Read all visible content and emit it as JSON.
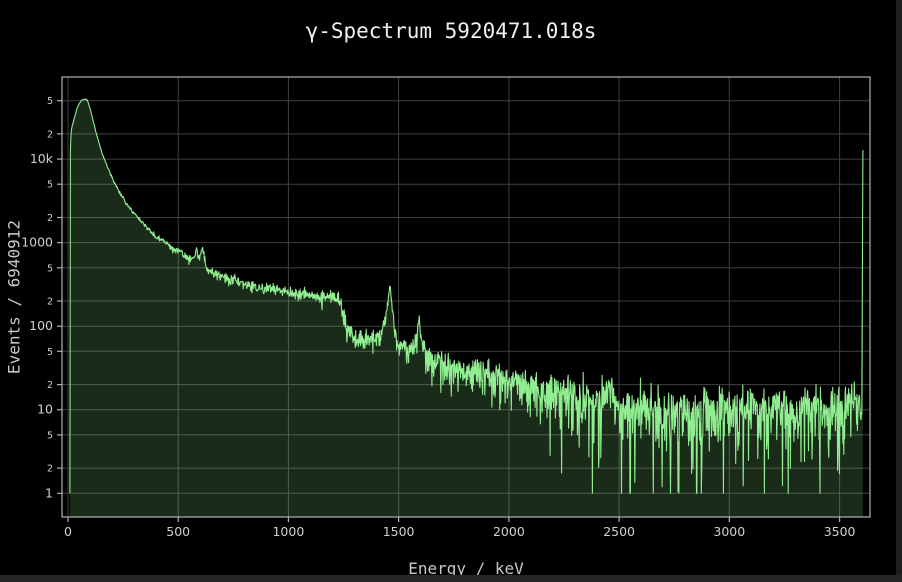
{
  "window": {
    "background": "#000000",
    "right_edge_color": "#1f1f1f",
    "bottom_edge_color": "#262626"
  },
  "chart_data": {
    "type": "area",
    "title": "γ-Spectrum 5920471.018s",
    "xlabel": "Energy / keV",
    "ylabel": "Events / 6940912",
    "legend": "none",
    "grid": "on",
    "x_axis": {
      "min": -27,
      "max": 3638,
      "ticks": [
        {
          "value": 0,
          "label": "0"
        },
        {
          "value": 500,
          "label": "500"
        },
        {
          "value": 1000,
          "label": "1000"
        },
        {
          "value": 1500,
          "label": "1500"
        },
        {
          "value": 2000,
          "label": "2000"
        },
        {
          "value": 2500,
          "label": "2500"
        },
        {
          "value": 3000,
          "label": "3000"
        },
        {
          "value": 3500,
          "label": "3500"
        }
      ]
    },
    "y_axis": {
      "scale": "log",
      "min": 0.52,
      "max": 96000,
      "major_ticks": [
        {
          "value": 1,
          "label": "1"
        },
        {
          "value": 10,
          "label": "10"
        },
        {
          "value": 100,
          "label": "100"
        },
        {
          "value": 1000,
          "label": "1000"
        },
        {
          "value": 10000,
          "label": "10k"
        }
      ],
      "minor_ticks": [
        {
          "value": 2,
          "label": "2"
        },
        {
          "value": 5,
          "label": "5"
        },
        {
          "value": 20,
          "label": "2"
        },
        {
          "value": 50,
          "label": "5"
        },
        {
          "value": 200,
          "label": "2"
        },
        {
          "value": 500,
          "label": "5"
        },
        {
          "value": 2000,
          "label": "2"
        },
        {
          "value": 5000,
          "label": "5"
        },
        {
          "value": 20000,
          "label": "2"
        },
        {
          "value": 50000,
          "label": "5"
        }
      ]
    },
    "style": {
      "line_color": "#90ee90",
      "fill_color": "rgba(144,238,144,0.18)",
      "grid_color": "#414141",
      "axis_color": "#b4b4b4",
      "tick_label_color": "#cfcfcf",
      "title_color": "#f0f0f0",
      "axis_label_color": "#c8c8c8"
    },
    "series": [
      {
        "name": "gamma-spectrum",
        "bin_width_kev": 2,
        "noise_model": "poisson",
        "noise_seed": 1337,
        "noise_scale": 1.35,
        "anchors_energy_kev_vs_counts": [
          [
            9,
            1
          ],
          [
            11,
            12600
          ],
          [
            14,
            21000
          ],
          [
            18,
            24500
          ],
          [
            25,
            28200
          ],
          [
            32,
            33000
          ],
          [
            40,
            39800
          ],
          [
            48,
            44500
          ],
          [
            55,
            47900
          ],
          [
            62,
            50100
          ],
          [
            70,
            51900
          ],
          [
            80,
            52200
          ],
          [
            88,
            50800
          ],
          [
            95,
            44700
          ],
          [
            103,
            38000
          ],
          [
            110,
            31600
          ],
          [
            118,
            26500
          ],
          [
            125,
            21900
          ],
          [
            133,
            18600
          ],
          [
            140,
            15800
          ],
          [
            150,
            12900
          ],
          [
            160,
            10700
          ],
          [
            170,
            9300
          ],
          [
            180,
            7940
          ],
          [
            190,
            6900
          ],
          [
            200,
            6030
          ],
          [
            215,
            5000
          ],
          [
            230,
            4170
          ],
          [
            245,
            3600
          ],
          [
            260,
            3090
          ],
          [
            280,
            2630
          ],
          [
            300,
            2240
          ],
          [
            320,
            1950
          ],
          [
            340,
            1700
          ],
          [
            360,
            1500
          ],
          [
            380,
            1320
          ],
          [
            400,
            1180
          ],
          [
            420,
            1070
          ],
          [
            440,
            1000
          ],
          [
            460,
            891
          ],
          [
            480,
            832
          ],
          [
            500,
            776
          ],
          [
            511,
            832
          ],
          [
            520,
            708
          ],
          [
            535,
            675
          ],
          [
            550,
            631
          ],
          [
            565,
            640
          ],
          [
            575,
            661
          ],
          [
            583,
            871
          ],
          [
            591,
            631
          ],
          [
            600,
            750
          ],
          [
            609,
            832
          ],
          [
            617,
            700
          ],
          [
            625,
            501
          ],
          [
            640,
            460
          ],
          [
            660,
            440
          ],
          [
            680,
            415
          ],
          [
            700,
            389
          ],
          [
            725,
            370
          ],
          [
            750,
            355
          ],
          [
            775,
            340
          ],
          [
            800,
            324
          ],
          [
            830,
            312
          ],
          [
            860,
            295
          ],
          [
            900,
            282
          ],
          [
            940,
            272
          ],
          [
            980,
            262
          ],
          [
            1020,
            251
          ],
          [
            1060,
            243
          ],
          [
            1100,
            234
          ],
          [
            1140,
            228
          ],
          [
            1180,
            222
          ],
          [
            1215,
            215
          ],
          [
            1235,
            200
          ],
          [
            1250,
            126
          ],
          [
            1265,
            89
          ],
          [
            1285,
            78
          ],
          [
            1310,
            71
          ],
          [
            1340,
            67
          ],
          [
            1370,
            67
          ],
          [
            1400,
            72
          ],
          [
            1420,
            85
          ],
          [
            1440,
            120
          ],
          [
            1452,
            200
          ],
          [
            1460,
            316
          ],
          [
            1468,
            200
          ],
          [
            1478,
            100
          ],
          [
            1495,
            63
          ],
          [
            1515,
            54
          ],
          [
            1535,
            50
          ],
          [
            1555,
            52
          ],
          [
            1572,
            60
          ],
          [
            1583,
            76
          ],
          [
            1592,
            110
          ],
          [
            1602,
            70
          ],
          [
            1615,
            48
          ],
          [
            1640,
            42
          ],
          [
            1670,
            39
          ],
          [
            1700,
            35
          ],
          [
            1740,
            33
          ],
          [
            1780,
            30
          ],
          [
            1820,
            29
          ],
          [
            1860,
            27
          ],
          [
            1900,
            25
          ],
          [
            1950,
            23
          ],
          [
            2000,
            22
          ],
          [
            2050,
            20
          ],
          [
            2100,
            18
          ],
          [
            2150,
            17
          ],
          [
            2200,
            16
          ],
          [
            2250,
            15
          ],
          [
            2300,
            14
          ],
          [
            2350,
            12
          ],
          [
            2400,
            11
          ],
          [
            2430,
            14
          ],
          [
            2455,
            17
          ],
          [
            2475,
            13
          ],
          [
            2510,
            10
          ],
          [
            2560,
            10
          ],
          [
            2590,
            11
          ],
          [
            2614,
            12
          ],
          [
            2640,
            10
          ],
          [
            2700,
            9
          ],
          [
            2760,
            9
          ],
          [
            2820,
            8
          ],
          [
            2880,
            9
          ],
          [
            2950,
            9
          ],
          [
            3050,
            9
          ],
          [
            3150,
            9
          ],
          [
            3250,
            9
          ],
          [
            3350,
            10
          ],
          [
            3450,
            10
          ],
          [
            3550,
            10
          ],
          [
            3602,
            10
          ]
        ],
        "dips_energy_kev_vs_counts": [
          [
            2852,
            1
          ]
        ],
        "overflow_bin_energy_kev_vs_counts": [
          3606,
          12800
        ]
      }
    ]
  }
}
